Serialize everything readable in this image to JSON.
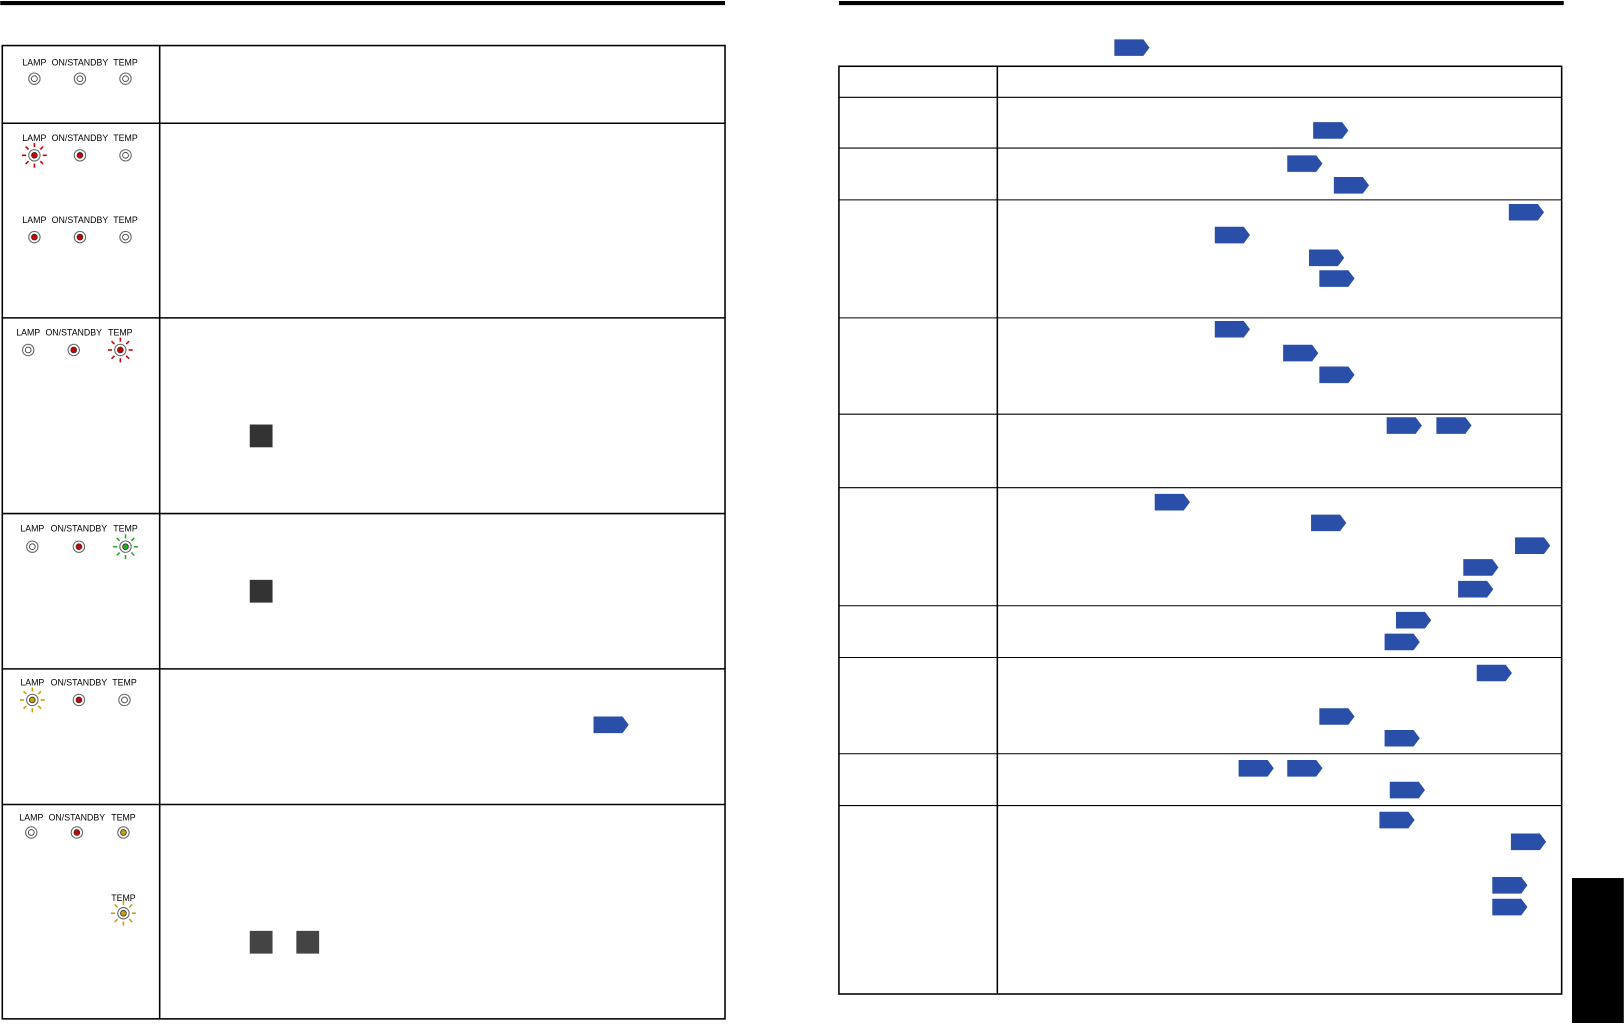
{
  "left_table": {
    "rows": [
      {
        "sets": [
          [
            "LAMP",
            "ON/STANDBY",
            "TEMP"
          ]
        ]
      },
      {
        "sets": [
          [
            "LAMP",
            "ON/STANDBY",
            "TEMP"
          ],
          [
            "LAMP",
            "ON/STANDBY",
            "TEMP"
          ]
        ]
      },
      {
        "sets": [
          [
            "LAMP",
            "ON/STANDBY",
            "TEMP"
          ]
        ]
      },
      {
        "sets": [
          [
            "LAMP",
            "ON/STANDBY",
            "TEMP"
          ]
        ]
      },
      {
        "sets": [
          [
            "LAMP",
            "ON/STANDBY",
            "TEMP"
          ]
        ]
      },
      {
        "sets": [
          [
            "LAMP",
            "ON/STANDBY",
            "TEMP"
          ],
          [
            "TEMP"
          ]
        ]
      }
    ]
  }
}
